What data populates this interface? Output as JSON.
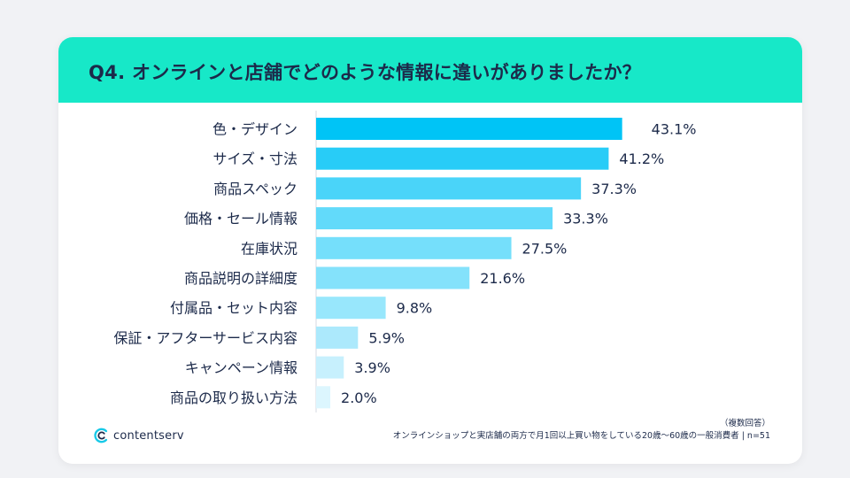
{
  "header": {
    "title": "Q4. オンラインと店舗でどのような情報に違いがありましたか？"
  },
  "chart_data": {
    "type": "bar",
    "orientation": "horizontal",
    "categories": [
      "色・デザイン",
      "サイズ・寸法",
      "商品スペック",
      "価格・セール情報",
      "在庫状況",
      "商品説明の詳細度",
      "付属品・セット内容",
      "保証・アフターサービス内容",
      "キャンペーン情報",
      "商品の取り扱い方法"
    ],
    "values": [
      43.1,
      41.2,
      37.3,
      33.3,
      27.5,
      21.6,
      9.8,
      5.9,
      3.9,
      2.0
    ],
    "value_labels": [
      "43.1%",
      "41.2%",
      "37.3%",
      "33.3%",
      "27.5%",
      "21.6%",
      "9.8%",
      "5.9%",
      "3.9%",
      "2.0%"
    ],
    "unit": "%",
    "xlim": [
      0,
      50
    ],
    "grid": false,
    "legend": "none",
    "bar_colors": [
      "#00c4f6",
      "#28ccf7",
      "#4ad4f9",
      "#62dafa",
      "#75dffb",
      "#84e2fb",
      "#98e7fc",
      "#ace9fc",
      "#c7f0fd",
      "#dcf6fe"
    ]
  },
  "footer": {
    "logo_text": "contentserv",
    "note_line1": "（複数回答）",
    "note_line2": "オンラインショップと実店舗の両方で月1回以上買い物をしている20歳～60歳の一般消費者 | n=51"
  },
  "colors": {
    "header_bg": "#17e8c8",
    "text": "#1c2a4a",
    "axis": "#d5dae2"
  },
  "icons": {
    "logo": "contentserv-c-logo-icon"
  }
}
